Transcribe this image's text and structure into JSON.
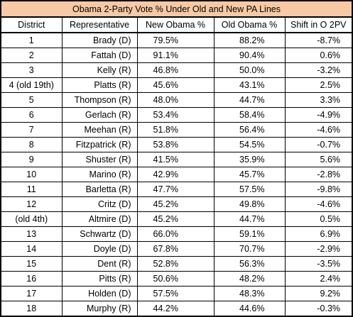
{
  "title": "Obama 2-Party Vote % Under Old and New PA Lines",
  "headers": {
    "district": "District",
    "representative": "Representative",
    "new_obama": "New Obama %",
    "old_obama": "Old Obama %",
    "shift": "Shift in O 2PV"
  },
  "rows": [
    {
      "district": "1",
      "rep": "Brady (D)",
      "new": "79.5%",
      "old": "88.2%",
      "shift": "-8.7%"
    },
    {
      "district": "2",
      "rep": "Fattah (D)",
      "new": "91.1%",
      "old": "90.4%",
      "shift": "0.6%"
    },
    {
      "district": "3",
      "rep": "Kelly (R)",
      "new": "46.8%",
      "old": "50.0%",
      "shift": "-3.2%"
    },
    {
      "district": "4 (old 19th)",
      "rep": "Platts (R)",
      "new": "45.6%",
      "old": "43.1%",
      "shift": "2.5%"
    },
    {
      "district": "5",
      "rep": "Thompson (R)",
      "new": "48.0%",
      "old": "44.7%",
      "shift": "3.3%"
    },
    {
      "district": "6",
      "rep": "Gerlach (R)",
      "new": "53.4%",
      "old": "58.4%",
      "shift": "-4.9%"
    },
    {
      "district": "7",
      "rep": "Meehan (R)",
      "new": "51.8%",
      "old": "56.4%",
      "shift": "-4.6%"
    },
    {
      "district": "8",
      "rep": "Fitzpatrick (R)",
      "new": "53.8%",
      "old": "54.5%",
      "shift": "-0.7%"
    },
    {
      "district": "9",
      "rep": "Shuster (R)",
      "new": "41.5%",
      "old": "35.9%",
      "shift": "5.6%"
    },
    {
      "district": "10",
      "rep": "Marino (R)",
      "new": "42.9%",
      "old": "45.7%",
      "shift": "-2.8%"
    },
    {
      "district": "11",
      "rep": "Barletta (R)",
      "new": "47.7%",
      "old": "57.5%",
      "shift": "-9.8%"
    },
    {
      "district": "12",
      "rep": "Critz (D)",
      "new": "45.2%",
      "old": "49.8%",
      "shift": "-4.6%"
    },
    {
      "district": "(old 4th)",
      "rep": "Altmire (D)",
      "new": "45.2%",
      "old": "44.7%",
      "shift": "0.5%"
    },
    {
      "district": "13",
      "rep": "Schwartz (D)",
      "new": "66.0%",
      "old": "59.1%",
      "shift": "6.9%"
    },
    {
      "district": "14",
      "rep": "Doyle (D)",
      "new": "67.8%",
      "old": "70.7%",
      "shift": "-2.9%"
    },
    {
      "district": "15",
      "rep": "Dent (R)",
      "new": "52.8%",
      "old": "56.3%",
      "shift": "-3.5%"
    },
    {
      "district": "16",
      "rep": "Pitts (R)",
      "new": "50.6%",
      "old": "48.2%",
      "shift": "2.4%"
    },
    {
      "district": "17",
      "rep": "Holden (D)",
      "new": "57.5%",
      "old": "48.3%",
      "shift": "9.2%"
    },
    {
      "district": "18",
      "rep": "Murphy (R)",
      "new": "44.2%",
      "old": "44.6%",
      "shift": "-0.3%"
    }
  ],
  "colors": {
    "title_background": "#f7c9a5",
    "border": "#000000"
  }
}
